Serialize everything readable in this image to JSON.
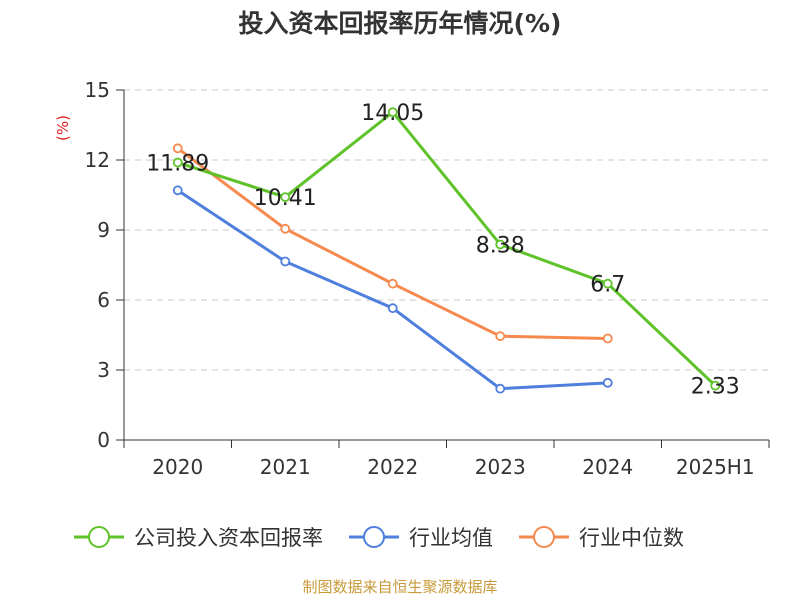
{
  "chart_data": {
    "type": "line",
    "title": "投入资本回报率历年情况(%)",
    "unit_label": "(%)",
    "categories": [
      "2020",
      "2021",
      "2022",
      "2023",
      "2024",
      "2025H1"
    ],
    "y_ticks": [
      "0",
      "3",
      "6",
      "9",
      "12",
      "15"
    ],
    "ylim": [
      0,
      15
    ],
    "grid": true,
    "legend_position": "bottom",
    "series": [
      {
        "name": "公司投入资本回报率",
        "color": "#5ec229",
        "values": [
          11.89,
          10.41,
          14.05,
          8.38,
          6.7,
          2.33
        ],
        "labels": [
          "11.89",
          "10.41",
          "14.05",
          "8.38",
          "6.7",
          "2.33"
        ]
      },
      {
        "name": "行业均值",
        "color": "#4f7fdc",
        "values": [
          10.7,
          7.65,
          5.65,
          2.2,
          2.45,
          null
        ]
      },
      {
        "name": "行业中位数",
        "color": "#f5894e",
        "values": [
          12.5,
          9.05,
          6.7,
          4.45,
          4.35,
          null
        ]
      }
    ]
  },
  "source": "制图数据来自恒生聚源数据库"
}
